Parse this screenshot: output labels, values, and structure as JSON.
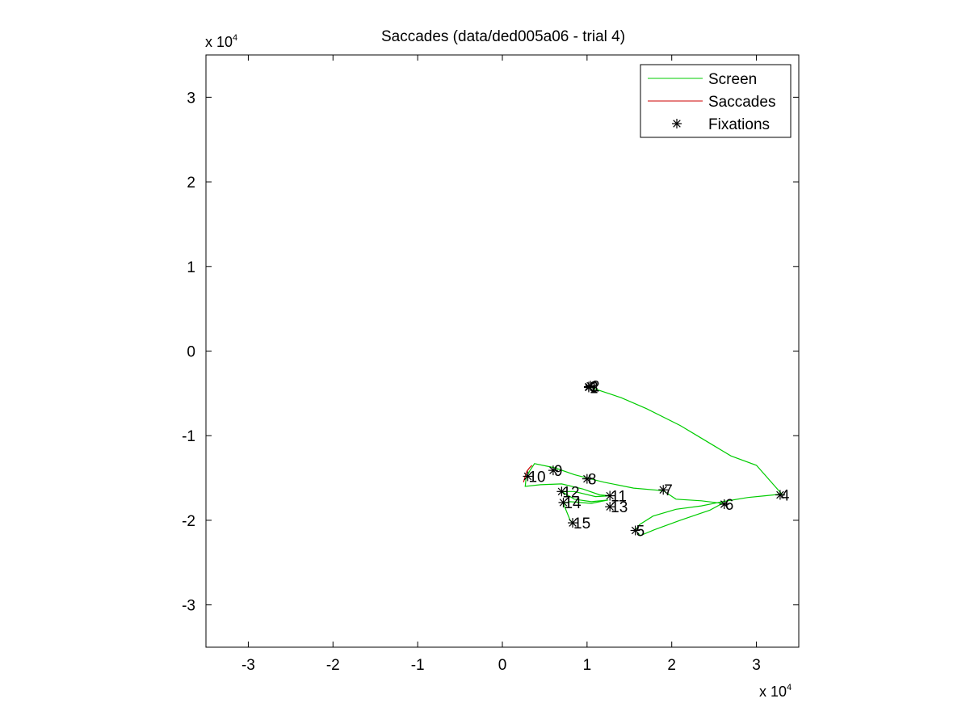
{
  "chart_data": {
    "type": "line",
    "title": "Saccades (data/ded005a06 - trial 4)",
    "xlabel": "",
    "ylabel": "",
    "x_multiplier": "x 10",
    "y_multiplier": "x 10",
    "exponent": "4",
    "xlim": [
      -3.5,
      3.5
    ],
    "ylim": [
      -3.5,
      3.5
    ],
    "x_ticks": [
      -3,
      -2,
      -1,
      0,
      1,
      2,
      3
    ],
    "y_ticks": [
      3,
      2,
      1,
      0,
      -1,
      -2,
      -3
    ],
    "x_tick_labels": [
      "-3",
      "-2",
      "-1",
      "0",
      "1",
      "2",
      "3"
    ],
    "y_tick_labels": [
      "3",
      "2",
      "1",
      "0",
      "-1",
      "-2",
      "-3"
    ],
    "grid": false,
    "legend_position": "top-right",
    "legend": [
      {
        "label": "Screen",
        "style": "line",
        "color": "#00cc00"
      },
      {
        "label": "Saccades",
        "style": "line",
        "color": "#cc0000"
      },
      {
        "label": "Fixations",
        "style": "marker",
        "color": "#000000"
      }
    ],
    "series": [
      {
        "name": "Screen",
        "color": "#00cc00",
        "x": [
          1.02,
          1.05,
          1.1,
          1.4,
          1.7,
          2.1,
          2.3,
          2.7,
          3.0,
          3.3,
          3.1,
          2.9,
          2.6,
          2.35,
          2.05,
          1.78,
          1.62,
          1.57,
          1.63,
          1.8,
          2.1,
          2.45,
          2.6,
          2.35,
          2.05,
          1.9,
          1.55,
          1.2,
          1.0,
          0.85,
          0.62,
          0.38,
          0.32,
          0.28,
          0.27,
          0.45,
          0.7,
          0.95,
          1.15,
          1.27,
          1.1,
          0.85,
          0.7,
          0.85,
          1.05,
          1.25,
          1.05,
          0.8,
          0.72,
          0.76,
          0.8,
          0.85
        ],
        "y": [
          -0.42,
          -0.43,
          -0.45,
          -0.55,
          -0.68,
          -0.88,
          -1.0,
          -1.24,
          -1.35,
          -1.69,
          -1.71,
          -1.73,
          -1.78,
          -1.83,
          -1.87,
          -1.95,
          -2.05,
          -2.12,
          -2.18,
          -2.11,
          -2.0,
          -1.88,
          -1.8,
          -1.77,
          -1.75,
          -1.65,
          -1.62,
          -1.55,
          -1.5,
          -1.46,
          -1.38,
          -1.33,
          -1.42,
          -1.5,
          -1.6,
          -1.58,
          -1.57,
          -1.63,
          -1.7,
          -1.71,
          -1.72,
          -1.66,
          -1.66,
          -1.75,
          -1.78,
          -1.76,
          -1.8,
          -1.78,
          -1.8,
          -1.9,
          -2.0,
          -2.05
        ]
      },
      {
        "name": "Saccades",
        "color": "#cc0000",
        "x": [
          0.35,
          0.32,
          0.29,
          0.27,
          0.25
        ],
        "y": [
          -1.35,
          -1.38,
          -1.42,
          -1.48,
          -1.55
        ]
      }
    ],
    "fixations": [
      {
        "label": "1",
        "x": 1.02,
        "y": -0.43
      },
      {
        "label": "2",
        "x": 1.04,
        "y": -0.41
      },
      {
        "label": "3",
        "x": 1.02,
        "y": -0.42
      },
      {
        "label": "4",
        "x": 3.28,
        "y": -1.7
      },
      {
        "label": "5",
        "x": 1.57,
        "y": -2.12
      },
      {
        "label": "6",
        "x": 2.62,
        "y": -1.81
      },
      {
        "label": "7",
        "x": 1.9,
        "y": -1.64
      },
      {
        "label": "8",
        "x": 1.0,
        "y": -1.51
      },
      {
        "label": "9",
        "x": 0.6,
        "y": -1.41
      },
      {
        "label": "10",
        "x": 0.3,
        "y": -1.48
      },
      {
        "label": "11",
        "x": 1.27,
        "y": -1.71
      },
      {
        "label": "12",
        "x": 0.7,
        "y": -1.66
      },
      {
        "label": "13",
        "x": 1.27,
        "y": -1.84
      },
      {
        "label": "14",
        "x": 0.72,
        "y": -1.79
      },
      {
        "label": "15",
        "x": 0.83,
        "y": -2.03
      }
    ]
  }
}
